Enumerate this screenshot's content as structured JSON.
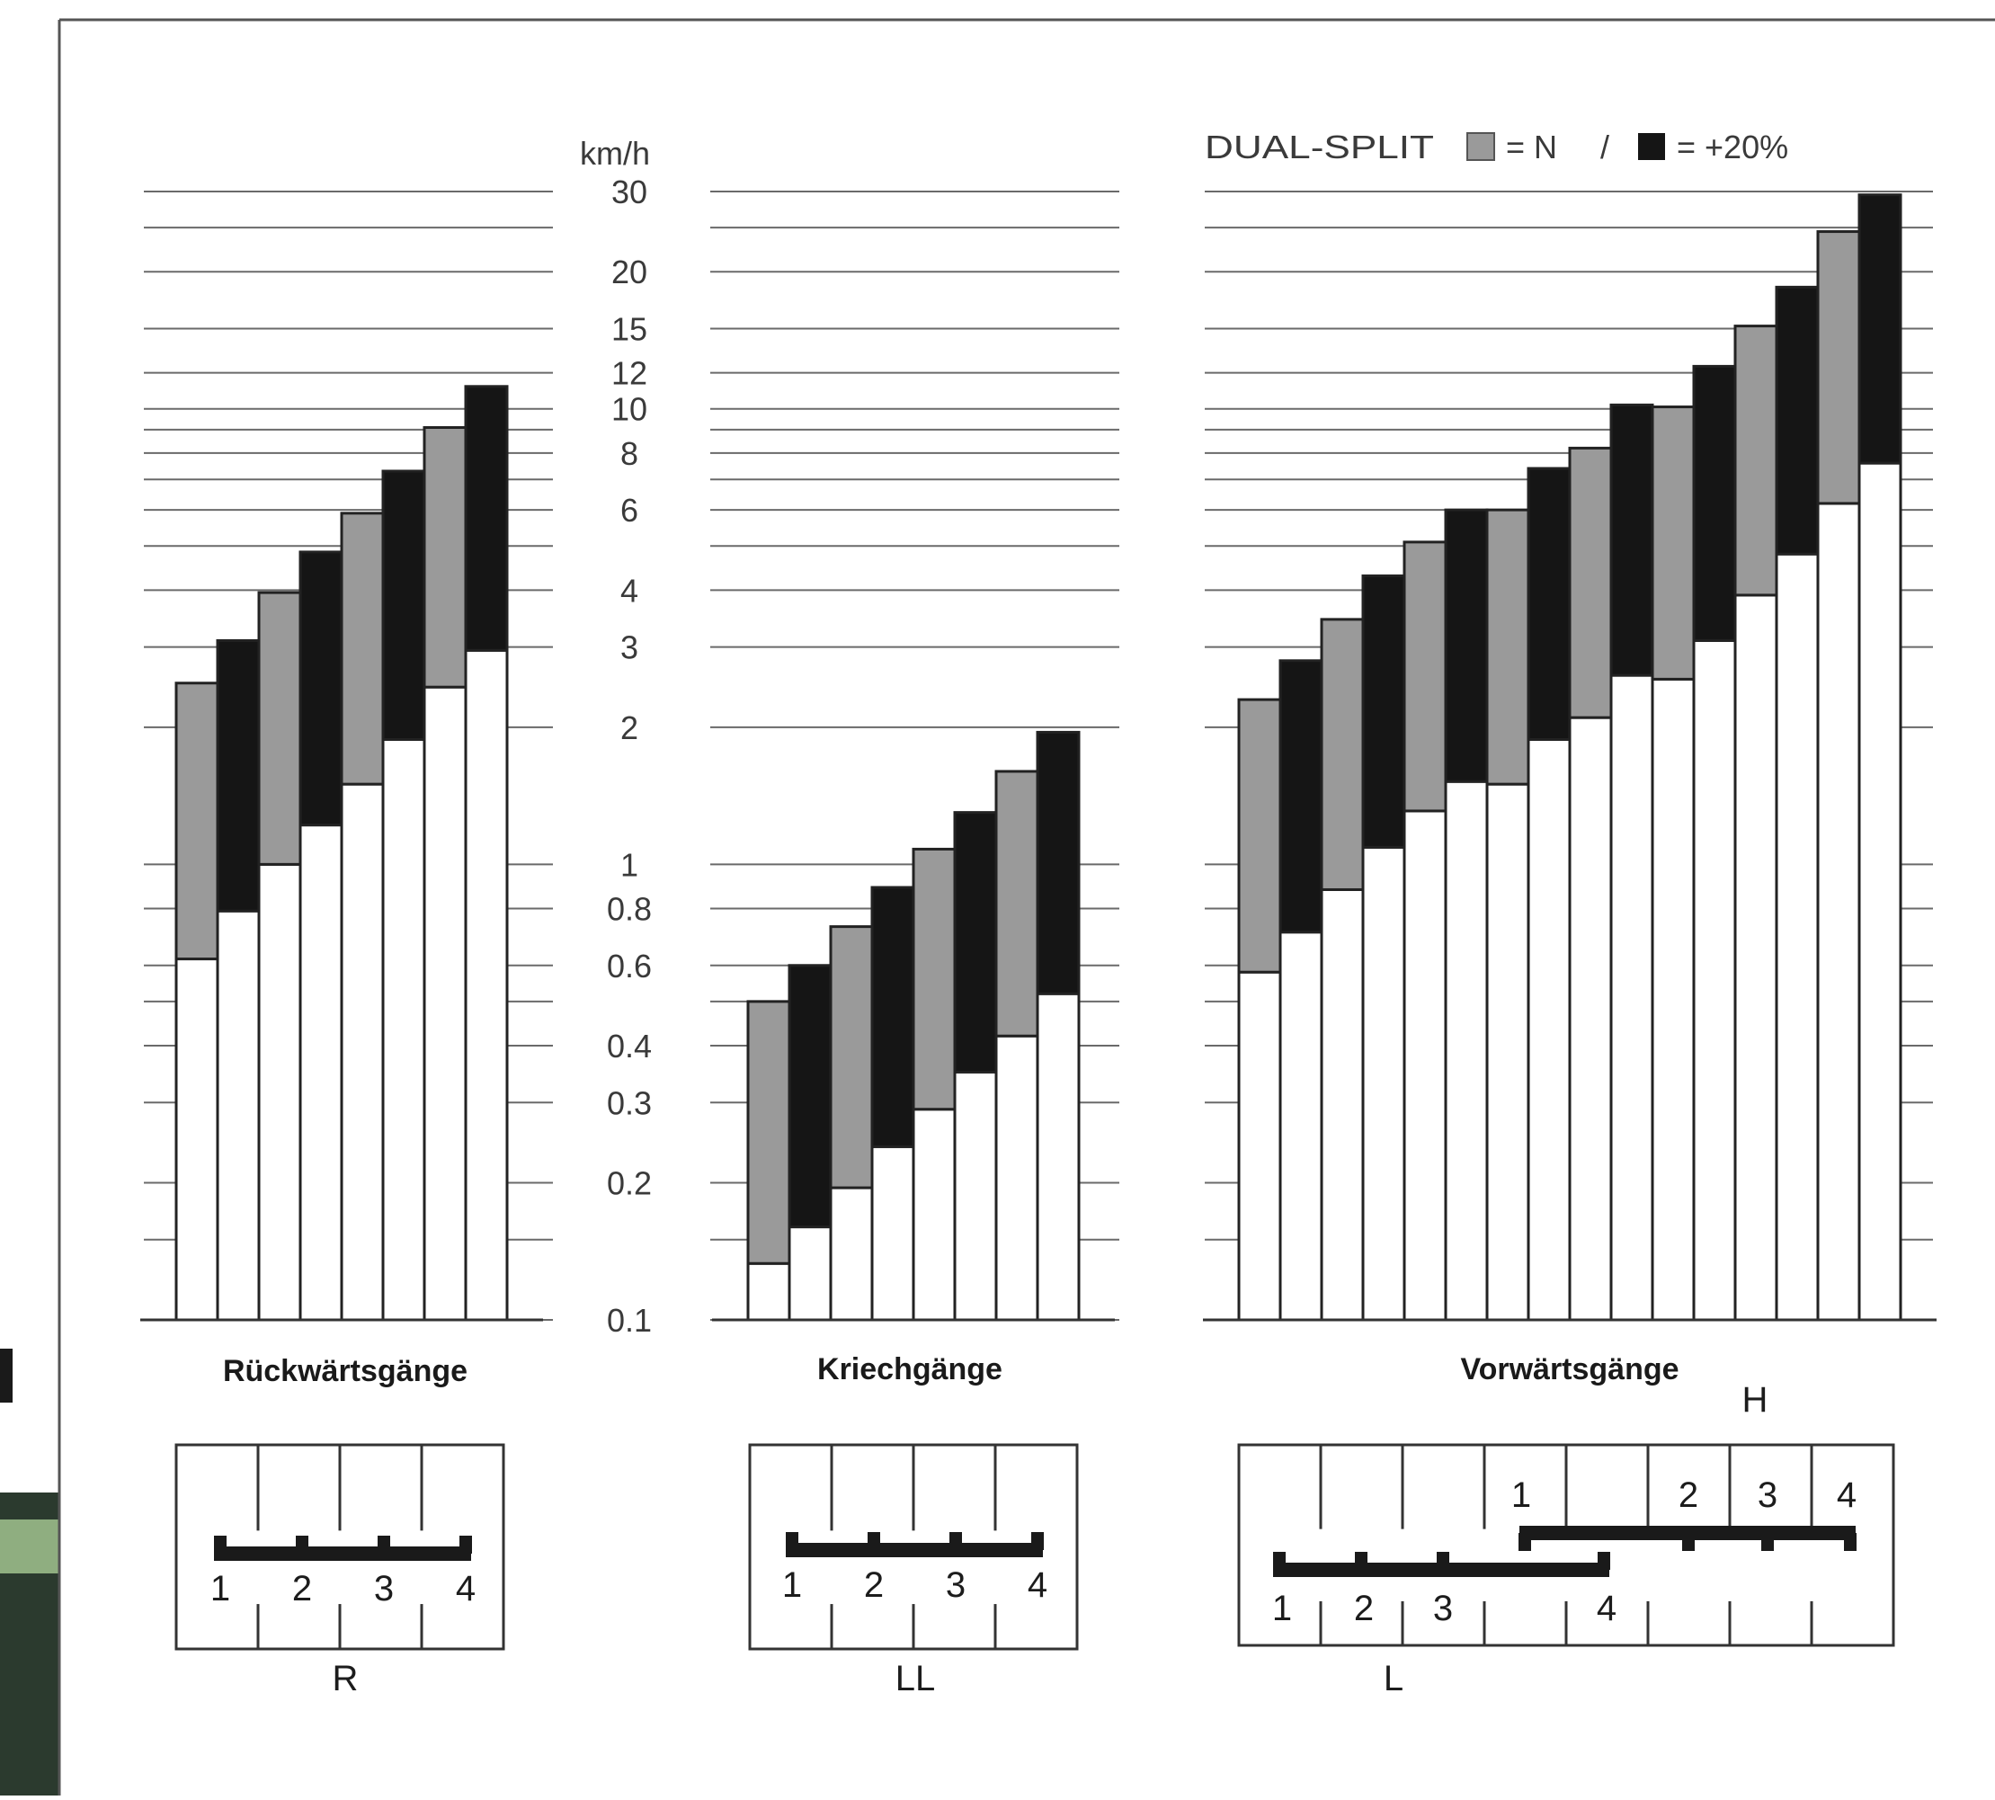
{
  "chart_data": {
    "type": "bar",
    "unit": "km/h",
    "yscale": "log",
    "ylim": [
      0.1,
      30
    ],
    "y_ticks": [
      "30",
      "20",
      "15",
      "12",
      "10",
      "8",
      "6",
      "4",
      "3",
      "2",
      "1",
      "0.8",
      "0.6",
      "0.4",
      "0.3",
      "0.2",
      "0.1"
    ],
    "legend": {
      "title": "DUAL-SPLIT",
      "items": [
        {
          "label": "= N",
          "color": "#9a9a9a"
        },
        {
          "label": "= +20%",
          "color": "#151515"
        }
      ],
      "separator": "/"
    },
    "colors": {
      "white": "#ffffff",
      "n": "#9a9a9a",
      "plus20": "#151515"
    },
    "groups": [
      {
        "title": "Rückwärtsgänge",
        "shift_label": "R",
        "gears": [
          "1",
          "2",
          "3",
          "4"
        ],
        "bars": [
          {
            "split": "N",
            "low": 0.62,
            "high": 2.5
          },
          {
            "split": "+20%",
            "low": 0.79,
            "high": 3.1
          },
          {
            "split": "N",
            "low": 1.0,
            "high": 3.95
          },
          {
            "split": "+20%",
            "low": 1.22,
            "high": 4.85
          },
          {
            "split": "N",
            "low": 1.5,
            "high": 5.9
          },
          {
            "split": "+20%",
            "low": 1.88,
            "high": 7.3
          },
          {
            "split": "N",
            "low": 2.45,
            "high": 9.1
          },
          {
            "split": "+20%",
            "low": 2.95,
            "high": 11.2
          }
        ]
      },
      {
        "title": "Kriechgänge",
        "shift_label": "LL",
        "gears": [
          "1",
          "2",
          "3",
          "4"
        ],
        "bars": [
          {
            "split": "N",
            "low": 0.133,
            "high": 0.5
          },
          {
            "split": "+20%",
            "low": 0.16,
            "high": 0.6
          },
          {
            "split": "N",
            "low": 0.195,
            "high": 0.73
          },
          {
            "split": "+20%",
            "low": 0.24,
            "high": 0.89
          },
          {
            "split": "N",
            "low": 0.29,
            "high": 1.08
          },
          {
            "split": "+20%",
            "low": 0.35,
            "high": 1.3
          },
          {
            "split": "N",
            "low": 0.42,
            "high": 1.6
          },
          {
            "split": "+20%",
            "low": 0.52,
            "high": 1.95
          }
        ]
      },
      {
        "title": "Vorwärtsgänge",
        "shift_label_low": "L",
        "shift_label_high": "H",
        "gears_low": [
          "1",
          "2",
          "3",
          "4"
        ],
        "gears_high": [
          "1",
          "2",
          "3",
          "4"
        ],
        "bars": [
          {
            "split": "N",
            "low": 0.58,
            "high": 2.3
          },
          {
            "split": "+20%",
            "low": 0.71,
            "high": 2.8
          },
          {
            "split": "N",
            "low": 0.88,
            "high": 3.45
          },
          {
            "split": "+20%",
            "low": 1.09,
            "high": 4.3
          },
          {
            "split": "N",
            "low": 1.31,
            "high": 5.1
          },
          {
            "split": "+20%",
            "low": 1.52,
            "high": 6.0
          },
          {
            "split": "N",
            "low": 1.5,
            "high": 6.0
          },
          {
            "split": "+20%",
            "low": 1.88,
            "high": 7.4
          },
          {
            "split": "N",
            "low": 2.1,
            "high": 8.2
          },
          {
            "split": "+20%",
            "low": 2.6,
            "high": 10.2
          },
          {
            "split": "N",
            "low": 2.55,
            "high": 10.1
          },
          {
            "split": "+20%",
            "low": 3.1,
            "high": 12.4
          },
          {
            "split": "N",
            "low": 3.9,
            "high": 15.2
          },
          {
            "split": "+20%",
            "low": 4.8,
            "high": 18.5
          },
          {
            "split": "N",
            "low": 6.2,
            "high": 24.5
          },
          {
            "split": "+20%",
            "low": 7.6,
            "high": 29.5
          }
        ]
      }
    ]
  }
}
